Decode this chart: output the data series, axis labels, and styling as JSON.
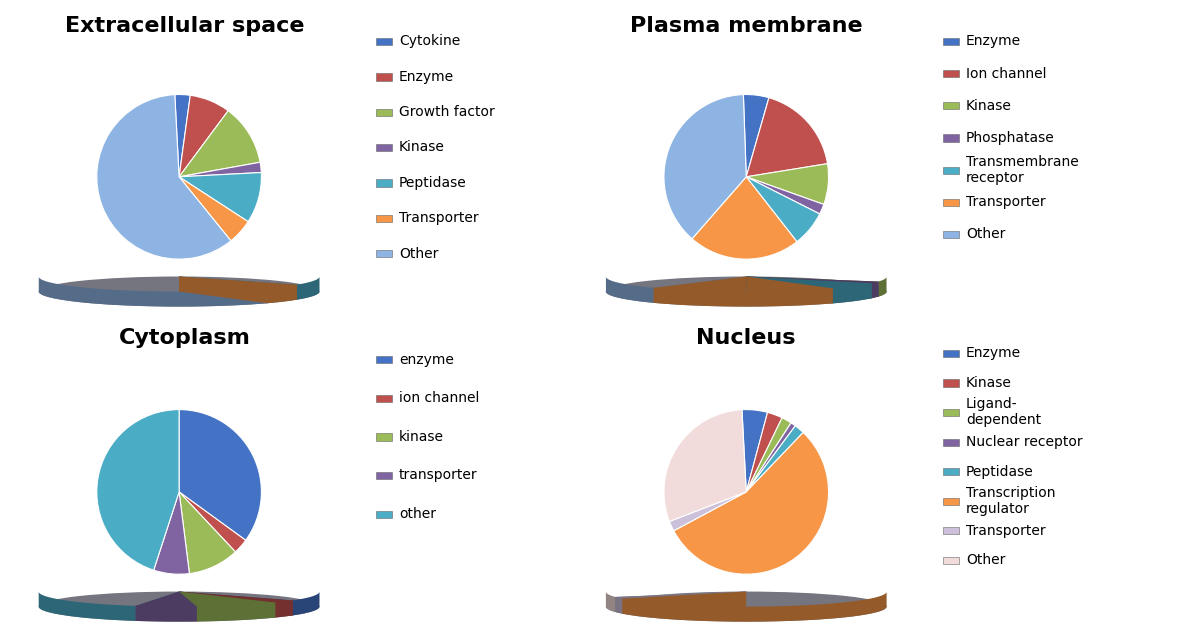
{
  "charts": [
    {
      "title": "Extracellular space",
      "values": [
        3,
        8,
        12,
        2,
        10,
        5,
        60
      ],
      "labels": [
        "Cytokine",
        "Enzyme",
        "Growth factor",
        "Kinase",
        "Peptidase",
        "Transporter",
        "Other"
      ],
      "colors": [
        "#4472C4",
        "#C0504D",
        "#9BBB59",
        "#8064A2",
        "#4BACC6",
        "#F79646",
        "#8EB4E3"
      ],
      "startangle": 93
    },
    {
      "title": "Plasma membrane",
      "values": [
        5,
        18,
        8,
        2,
        7,
        22,
        38
      ],
      "labels": [
        "Enzyme",
        "Ion channel",
        "Kinase",
        "Phosphatase",
        "Transmembrane\nreceptor",
        "Transporter",
        "Other"
      ],
      "colors": [
        "#4472C4",
        "#C0504D",
        "#9BBB59",
        "#8064A2",
        "#4BACC6",
        "#F79646",
        "#8EB4E3"
      ],
      "startangle": 92
    },
    {
      "title": "Cytoplasm",
      "values": [
        35,
        3,
        10,
        7,
        45
      ],
      "labels": [
        "enzyme",
        "ion channel",
        "kinase",
        "transporter",
        "other"
      ],
      "colors": [
        "#4472C4",
        "#C0504D",
        "#9BBB59",
        "#8064A2",
        "#4BACC6"
      ],
      "startangle": 90
    },
    {
      "title": "Nucleus",
      "values": [
        5,
        3,
        2,
        1,
        2,
        55,
        2,
        30
      ],
      "labels": [
        "Enzyme",
        "Kinase",
        "Ligand-\ndependent",
        "Nuclear receptor",
        "Peptidase",
        "Transcription\nregulator",
        "Transporter",
        "Other"
      ],
      "colors": [
        "#4472C4",
        "#C0504D",
        "#9BBB59",
        "#8064A2",
        "#4BACC6",
        "#F79646",
        "#CCC0DA",
        "#F2DCDB"
      ],
      "startangle": 93
    }
  ],
  "background_color": "#FFFFFF",
  "title_fontsize": 16,
  "legend_fontsize": 10,
  "legend_marker_size": 10
}
